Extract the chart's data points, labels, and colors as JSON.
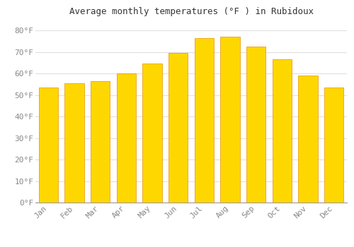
{
  "title": "Average monthly temperatures (°F ) in Rubidoux",
  "months": [
    "Jan",
    "Feb",
    "Mar",
    "Apr",
    "May",
    "Jun",
    "Jul",
    "Aug",
    "Sep",
    "Oct",
    "Nov",
    "Dec"
  ],
  "values": [
    53.5,
    55.5,
    56.5,
    60.0,
    64.5,
    69.5,
    76.5,
    77.0,
    72.5,
    66.5,
    59.0,
    53.5
  ],
  "bar_color_top": "#FFA500",
  "bar_color_bottom": "#FFD700",
  "bar_edge_color": "#E89000",
  "background_color": "#FFFFFF",
  "grid_color": "#E0E0E0",
  "tick_label_color": "#888888",
  "title_color": "#333333",
  "ylim": [
    0,
    85
  ],
  "yticks": [
    0,
    10,
    20,
    30,
    40,
    50,
    60,
    70,
    80
  ],
  "ytick_labels": [
    "0°F",
    "10°F",
    "20°F",
    "30°F",
    "40°F",
    "50°F",
    "60°F",
    "70°F",
    "80°F"
  ],
  "bar_width": 0.75,
  "title_fontsize": 9,
  "tick_fontsize": 8
}
